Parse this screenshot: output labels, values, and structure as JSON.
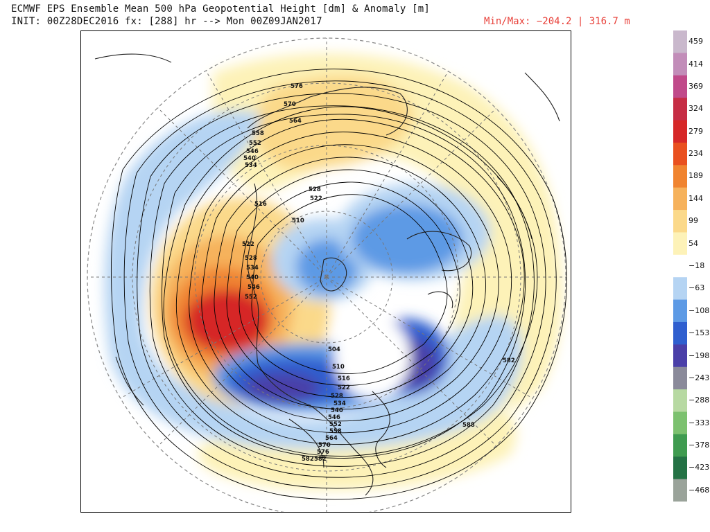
{
  "header": {
    "title": "ECMWF EPS Ensemble Mean 500 hPa Geopotential Height [dm] & Anomaly [m]",
    "init": "INIT: 00Z28DEC2016 fx: [288] hr --> Mon 00Z09JAN2017",
    "minmax": "Min/Max: −204.2 | 316.7 m"
  },
  "legend": {
    "labels": [
      "459",
      "414",
      "369",
      "324",
      "279",
      "234",
      "189",
      "144",
      "99",
      "54",
      "−18",
      "−63",
      "−108",
      "−153",
      "−198",
      "−243",
      "−288",
      "−333",
      "−378",
      "−423",
      "−468"
    ],
    "colors": [
      "#c9b8cc",
      "#c28db9",
      "#c04a8a",
      "#c62d45",
      "#d62828",
      "#e9501f",
      "#f08430",
      "#f6b25c",
      "#fbd98a",
      "#fdf2b8",
      "#ffffff",
      "#b5d4f3",
      "#5d9ae5",
      "#2f5fcf",
      "#4a3fa8",
      "#8a8a9a",
      "#b7d9a2",
      "#7cc16f",
      "#3f9b50",
      "#247245",
      "#9aa39a"
    ]
  },
  "map": {
    "contour_labels": [
      {
        "text": "576"
      },
      {
        "text": "570"
      },
      {
        "text": "564"
      },
      {
        "text": "558"
      },
      {
        "text": "552"
      },
      {
        "text": "546"
      },
      {
        "text": "540"
      },
      {
        "text": "534"
      },
      {
        "text": "528"
      },
      {
        "text": "522"
      },
      {
        "text": "516"
      },
      {
        "text": "510"
      },
      {
        "text": "522"
      },
      {
        "text": "528"
      },
      {
        "text": "534"
      },
      {
        "text": "540"
      },
      {
        "text": "546"
      },
      {
        "text": "552"
      },
      {
        "text": "504"
      },
      {
        "text": "510"
      },
      {
        "text": "516"
      },
      {
        "text": "522"
      },
      {
        "text": "528"
      },
      {
        "text": "534"
      },
      {
        "text": "540"
      },
      {
        "text": "546"
      },
      {
        "text": "552"
      },
      {
        "text": "558"
      },
      {
        "text": "564"
      },
      {
        "text": "570"
      },
      {
        "text": "576"
      },
      {
        "text": "582"
      },
      {
        "text": "582"
      },
      {
        "text": "588"
      },
      {
        "text": "582"
      }
    ]
  }
}
